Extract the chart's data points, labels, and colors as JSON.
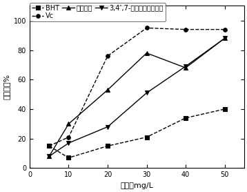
{
  "x": [
    5,
    10,
    20,
    30,
    40,
    50
  ],
  "series": {
    "BHT": [
      15,
      7,
      15,
      21,
      34,
      40
    ],
    "Vc": [
      15,
      21,
      76,
      95,
      94,
      94
    ],
    "huangyan": [
      8,
      30,
      53,
      78,
      68,
      88
    ],
    "trihydroxy": [
      8,
      17,
      28,
      51,
      69,
      88
    ]
  },
  "legend_labels": [
    "BHT",
    "Vc",
    "黄颜木素",
    "3,4’,7-三羟基二氢黄酮醇"
  ],
  "markers": [
    "s",
    "o",
    "^",
    "v"
  ],
  "linestyles": [
    "--",
    "--",
    "-",
    "-"
  ],
  "colors": [
    "black",
    "black",
    "black",
    "black"
  ],
  "xlabel": "浓度，mg/L",
  "ylabel": "清除率，%",
  "xlim": [
    0,
    55
  ],
  "ylim": [
    0,
    110
  ],
  "xticks": [
    0,
    10,
    20,
    30,
    40,
    50
  ],
  "yticks": [
    0,
    20,
    40,
    60,
    80,
    100
  ]
}
